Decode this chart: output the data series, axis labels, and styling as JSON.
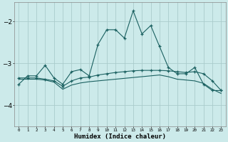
{
  "xlabel": "Humidex (Indice chaleur)",
  "background_color": "#cceaea",
  "grid_color": "#aacccc",
  "line_color": "#1a6060",
  "xlim": [
    -0.5,
    23.5
  ],
  "ylim": [
    -4.5,
    -1.55
  ],
  "yticks": [
    -4,
    -3,
    -2
  ],
  "xtick_labels": [
    "0",
    "1",
    "2",
    "3",
    "4",
    "5",
    "6",
    "7",
    "8",
    "9",
    "10",
    "11",
    "12",
    "13",
    "14",
    "15",
    "16",
    "17",
    "18",
    "19",
    "20",
    "21",
    "22",
    "23"
  ],
  "series1_x": [
    0,
    1,
    2,
    3,
    4,
    5,
    6,
    7,
    8,
    9,
    10,
    11,
    12,
    13,
    14,
    15,
    16,
    17,
    18,
    19,
    20,
    21,
    22,
    23
  ],
  "series1_y": [
    -3.5,
    -3.3,
    -3.3,
    -3.05,
    -3.35,
    -3.5,
    -3.2,
    -3.15,
    -3.3,
    -2.55,
    -2.2,
    -2.2,
    -2.4,
    -1.75,
    -2.3,
    -2.1,
    -2.6,
    -3.1,
    -3.25,
    -3.25,
    -3.1,
    -3.5,
    -3.65,
    -3.65
  ],
  "series2_x": [
    0,
    1,
    2,
    3,
    4,
    5,
    6,
    7,
    8,
    9,
    10,
    11,
    12,
    13,
    14,
    15,
    16,
    17,
    18,
    19,
    20,
    21,
    22,
    23
  ],
  "series2_y": [
    -3.35,
    -3.35,
    -3.35,
    -3.38,
    -3.42,
    -3.55,
    -3.42,
    -3.35,
    -3.33,
    -3.28,
    -3.25,
    -3.22,
    -3.2,
    -3.18,
    -3.17,
    -3.17,
    -3.17,
    -3.18,
    -3.2,
    -3.22,
    -3.2,
    -3.25,
    -3.42,
    -3.65
  ],
  "series3_x": [
    0,
    1,
    2,
    3,
    4,
    5,
    6,
    7,
    8,
    9,
    10,
    11,
    12,
    13,
    14,
    15,
    16,
    17,
    18,
    19,
    20,
    21,
    22,
    23
  ],
  "series3_y": [
    -3.38,
    -3.38,
    -3.38,
    -3.4,
    -3.45,
    -3.62,
    -3.52,
    -3.47,
    -3.44,
    -3.42,
    -3.4,
    -3.38,
    -3.36,
    -3.34,
    -3.32,
    -3.3,
    -3.28,
    -3.32,
    -3.38,
    -3.4,
    -3.42,
    -3.48,
    -3.62,
    -3.72
  ]
}
